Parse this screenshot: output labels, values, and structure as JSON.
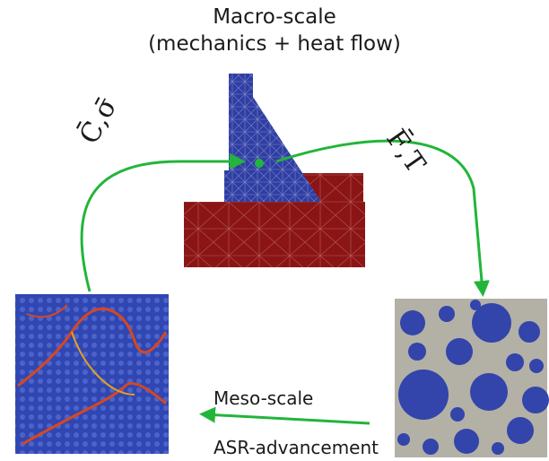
{
  "macro": {
    "title_line1": "Macro-scale",
    "title_line2": "(mechanics + heat flow)"
  },
  "arrows": {
    "left_label": "C̄,σ̄",
    "right_label": "F̄,T"
  },
  "meso": {
    "label": "Meso-scale",
    "process_label": "ASR-advancement"
  },
  "colors": {
    "arrow": "#22b53a",
    "mesh_blue": "#2f3ea3",
    "mesh_red": "#8b1515",
    "crack": "#d8471e",
    "matrix_gray": "#b3b0a6"
  }
}
